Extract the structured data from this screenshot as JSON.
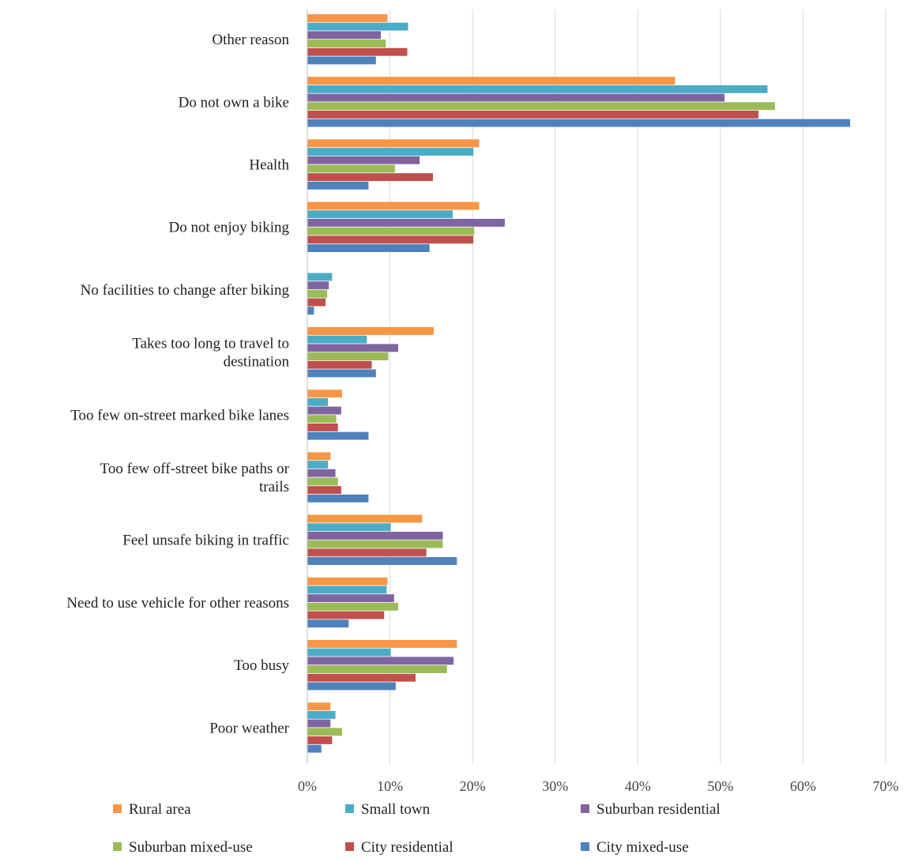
{
  "chart_data": {
    "type": "bar",
    "orientation": "horizontal",
    "title": "",
    "xlabel": "",
    "ylabel": "",
    "xlim": [
      0,
      70
    ],
    "x_ticks": [
      "0%",
      "10%",
      "20%",
      "30%",
      "40%",
      "50%",
      "60%",
      "70%"
    ],
    "grid": "vertical",
    "legend_position": "bottom",
    "categories": [
      {
        "lines": [
          "Other reason"
        ]
      },
      {
        "lines": [
          "Do not own a bike"
        ]
      },
      {
        "lines": [
          "Health"
        ]
      },
      {
        "lines": [
          "Do not enjoy biking"
        ]
      },
      {
        "lines": [
          "No facilities to change after biking"
        ]
      },
      {
        "lines": [
          "Takes too long to travel to",
          "destination"
        ]
      },
      {
        "lines": [
          "Too few on-street marked bike lanes"
        ]
      },
      {
        "lines": [
          "Too few off-street bike paths or",
          "trails"
        ]
      },
      {
        "lines": [
          "Feel unsafe biking in traffic"
        ]
      },
      {
        "lines": [
          "Need to use vehicle for other reasons"
        ]
      },
      {
        "lines": [
          "Too busy"
        ]
      },
      {
        "lines": [
          "Poor weather"
        ]
      }
    ],
    "series": [
      {
        "name": "Rural area",
        "color": "#f79646",
        "values": [
          9.7,
          44.5,
          20.8,
          20.8,
          0,
          15.3,
          4.2,
          2.8,
          13.9,
          9.7,
          18.1,
          2.8
        ]
      },
      {
        "name": "Small town",
        "color": "#4bacc6",
        "values": [
          12.2,
          55.7,
          20.1,
          17.6,
          3.0,
          7.2,
          2.5,
          2.5,
          10.1,
          9.6,
          10.1,
          3.4
        ]
      },
      {
        "name": "Suburban residential",
        "color": "#8064a2",
        "values": [
          8.9,
          50.5,
          13.6,
          23.9,
          2.6,
          11.0,
          4.1,
          3.4,
          16.4,
          10.5,
          17.7,
          2.8
        ]
      },
      {
        "name": "Suburban mixed-use",
        "color": "#9bbb59",
        "values": [
          9.5,
          56.6,
          10.6,
          20.2,
          2.4,
          9.8,
          3.5,
          3.7,
          16.4,
          11.0,
          16.9,
          4.2
        ]
      },
      {
        "name": "City residential",
        "color": "#c0504d",
        "values": [
          12.1,
          54.6,
          15.2,
          20.1,
          2.2,
          7.8,
          3.7,
          4.1,
          14.4,
          9.3,
          13.1,
          3.0
        ]
      },
      {
        "name": "City mixed-use",
        "color": "#4f81bd",
        "values": [
          8.3,
          65.7,
          7.4,
          14.8,
          0.8,
          8.3,
          7.4,
          7.4,
          18.1,
          5.0,
          10.7,
          1.7
        ]
      }
    ],
    "legend_order": [
      "Rural area",
      "Small town",
      "Suburban residential",
      "Suburban mixed-use",
      "City residential",
      "City mixed-use"
    ]
  }
}
